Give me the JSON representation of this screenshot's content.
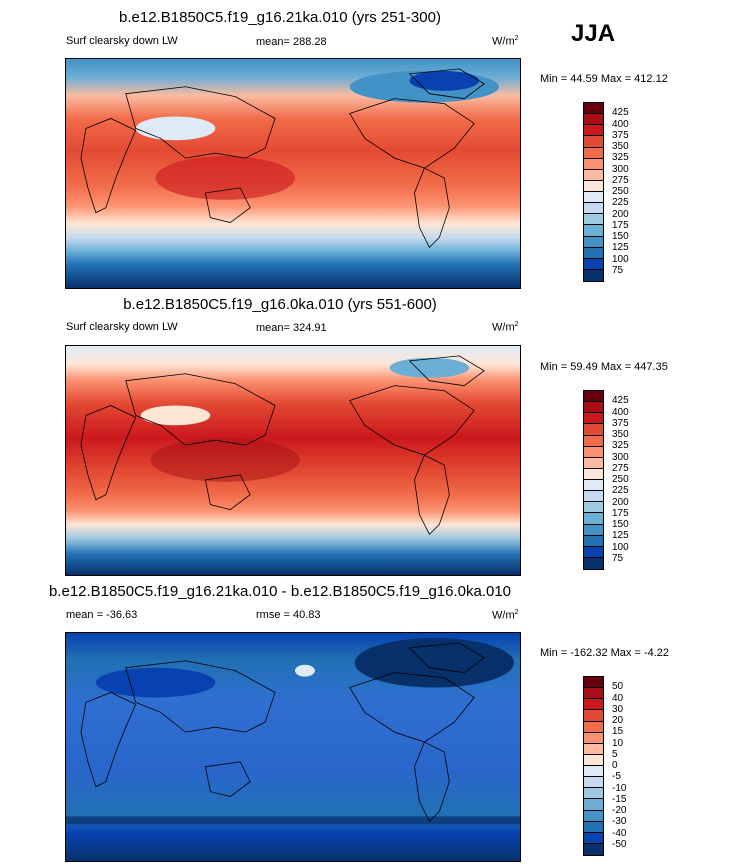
{
  "header": {
    "season": "JJA"
  },
  "panels": [
    {
      "title": "b.e12.B1850C5.f19_g16.21ka.010 (yrs 251-300)",
      "left_label": "Surf clearsky down LW",
      "mid_label": "mean= 288.28",
      "units": "W/m",
      "units_sup": "2",
      "minmax": "Min =  44.59 Max = 412.12",
      "scale": "abs",
      "colorbar_labels": [
        "425",
        "400",
        "375",
        "350",
        "325",
        "300",
        "275",
        "250",
        "225",
        "200",
        "175",
        "150",
        "125",
        "100",
        "75"
      ]
    },
    {
      "title": "b.e12.B1850C5.f19_g16.0ka.010 (yrs 551-600)",
      "left_label": "Surf clearsky down LW",
      "mid_label": "mean= 324.91",
      "units": "W/m",
      "units_sup": "2",
      "minmax": "Min =  59.49 Max = 447.35",
      "scale": "abs",
      "colorbar_labels": [
        "425",
        "400",
        "375",
        "350",
        "325",
        "300",
        "275",
        "250",
        "225",
        "200",
        "175",
        "150",
        "125",
        "100",
        "75"
      ]
    },
    {
      "title": "b.e12.B1850C5.f19_g16.21ka.010 - b.e12.B1850C5.f19_g16.0ka.010",
      "left_label": "mean = -36.63",
      "mid_label": "rmse =  40.83",
      "units": "W/m",
      "units_sup": "2",
      "minmax": "Min = -162.32 Max =  -4.22",
      "scale": "diff",
      "colorbar_labels": [
        "50",
        "40",
        "30",
        "20",
        "15",
        "10",
        "5",
        "0",
        "-5",
        "-10",
        "-15",
        "-20",
        "-30",
        "-40",
        "-50"
      ]
    }
  ],
  "colors": {
    "abs_scale": [
      "#67000d",
      "#a50f15",
      "#cb181d",
      "#e34a33",
      "#f16c4a",
      "#fc9272",
      "#fcbba1",
      "#fee6d6",
      "#deebf7",
      "#c6dbef",
      "#9ecae1",
      "#6baed6",
      "#4292c6",
      "#2171b5",
      "#0842b0",
      "#08306b"
    ],
    "diff_scale": [
      "#67000d",
      "#a50f15",
      "#cb181d",
      "#e34a33",
      "#f16c4a",
      "#fc9272",
      "#fcbba1",
      "#fee6d6",
      "#deebf7",
      "#c6dbef",
      "#9ecae1",
      "#6baed6",
      "#4292c6",
      "#2171b5",
      "#0842b0",
      "#08306b"
    ]
  }
}
